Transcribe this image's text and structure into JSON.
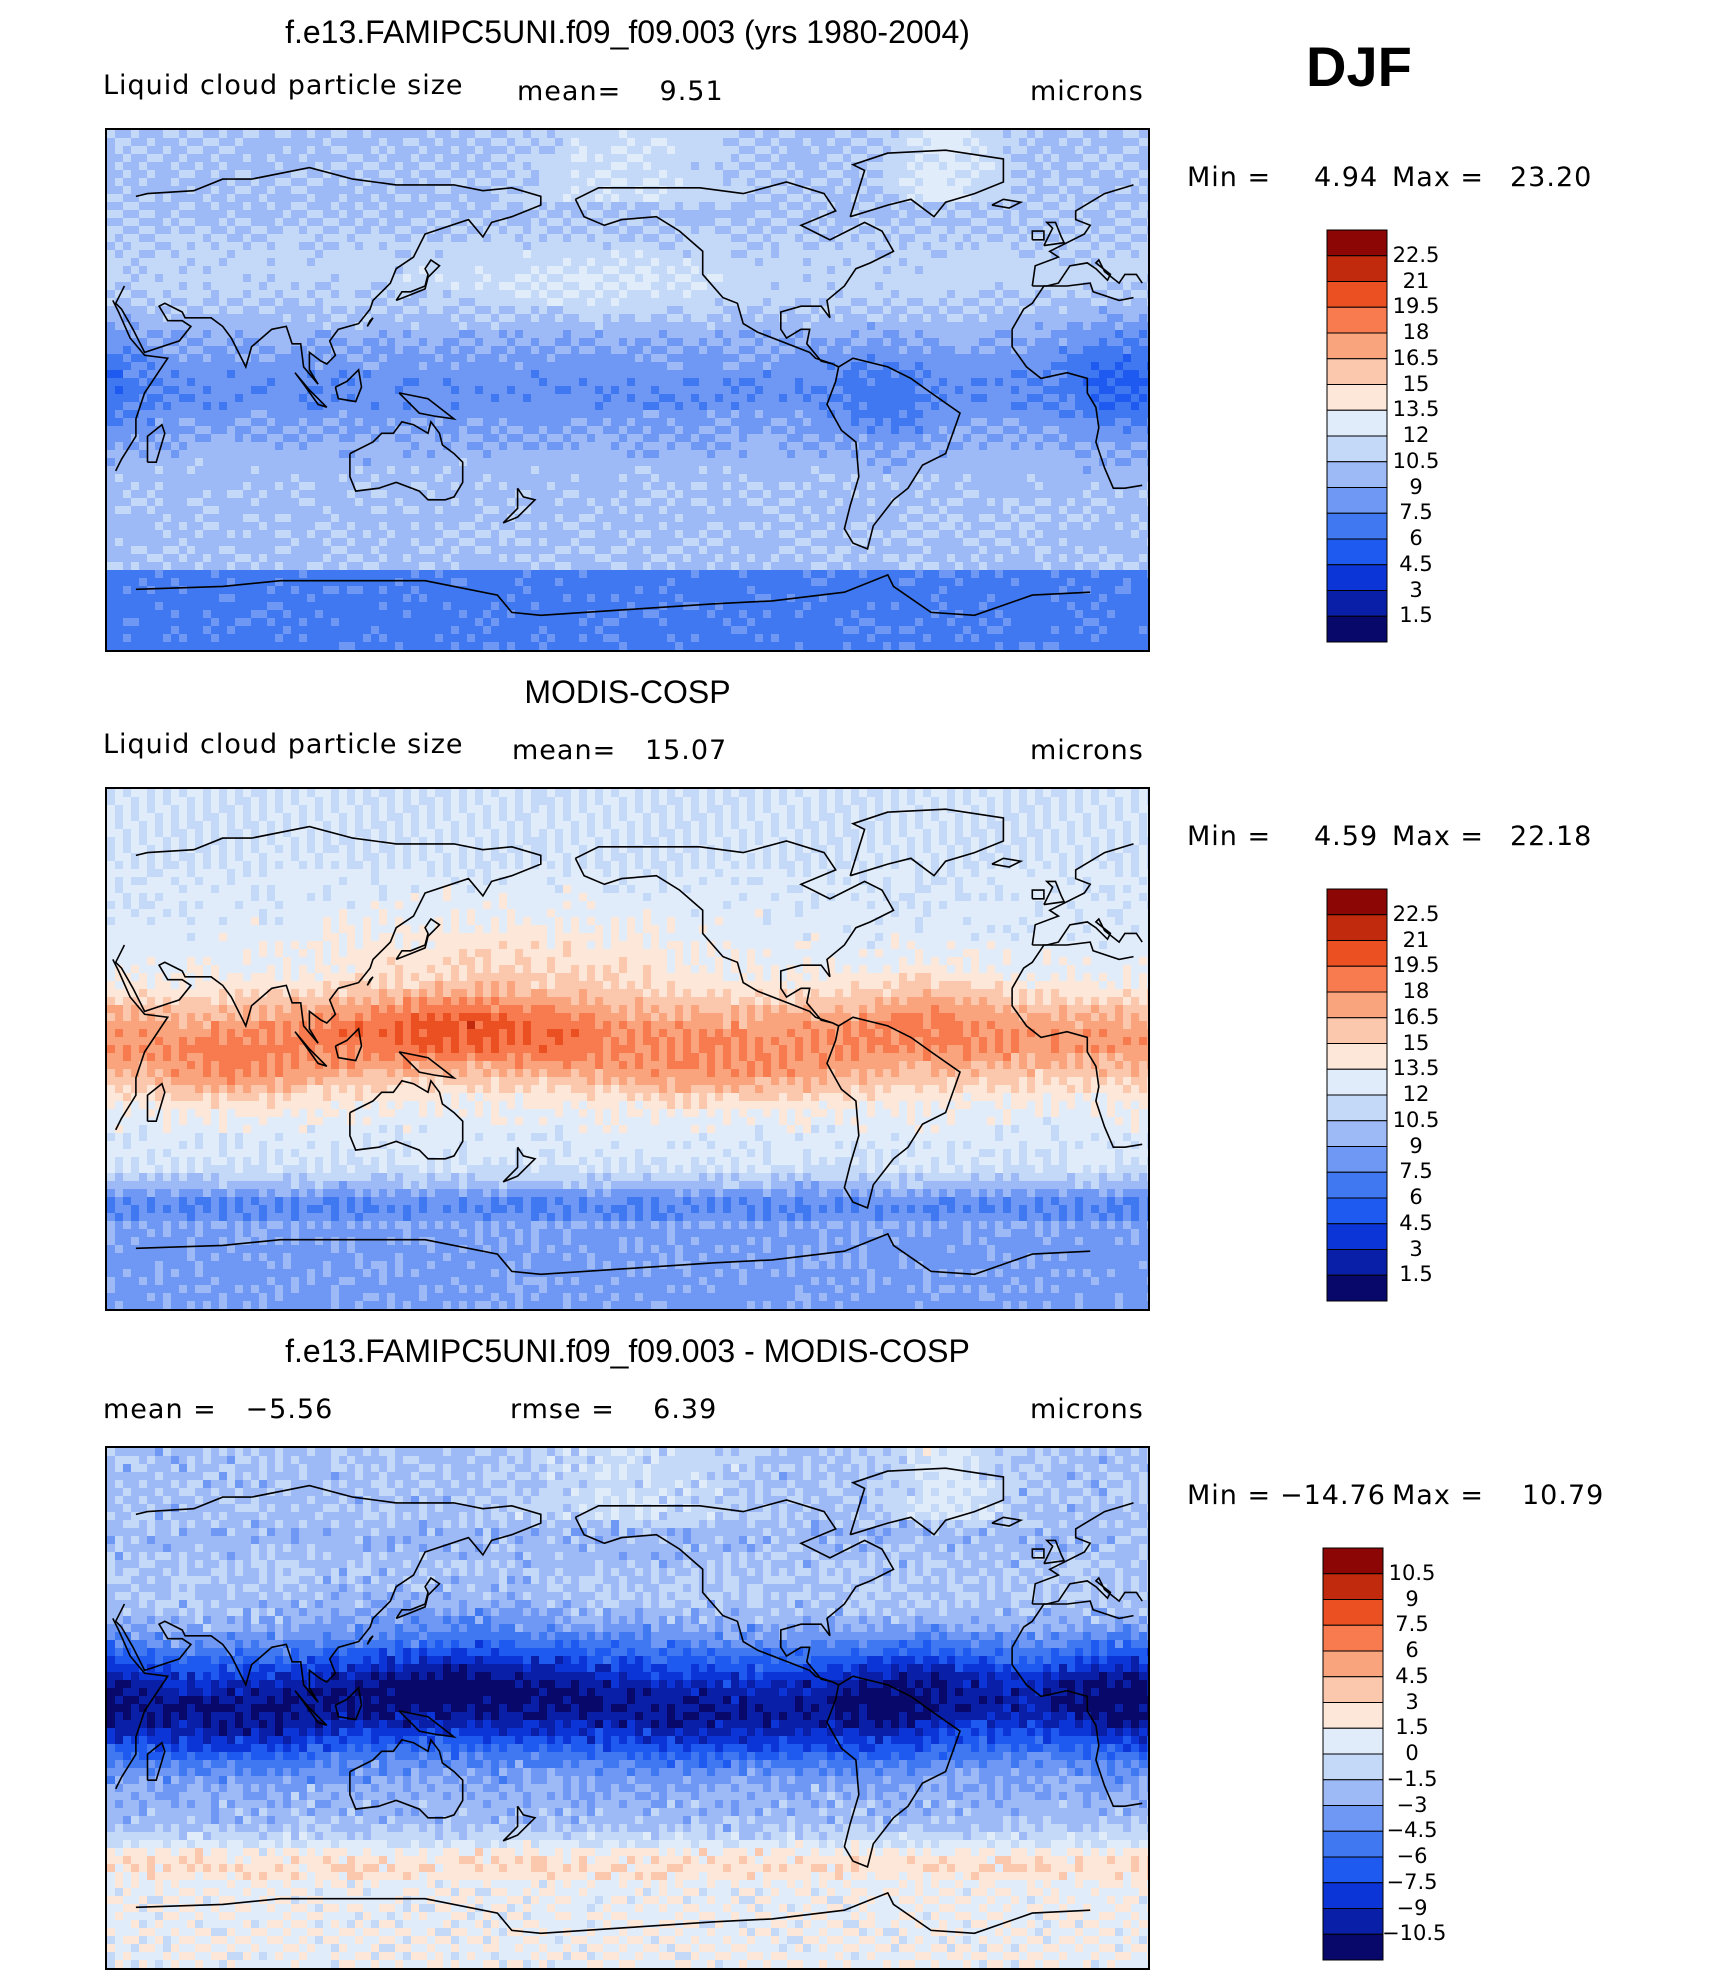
{
  "season": "DJF",
  "panels": [
    {
      "title": "f.e13.FAMIPC5UNI.f09_f09.003 (yrs 1980-2004)",
      "left_text": "Liquid cloud particle size",
      "mid_text": "mean=    9.51",
      "right_text": "microns",
      "min_label": "Min =",
      "min_value": "4.94",
      "max_label": "Max =",
      "max_value": "23.20",
      "field": "model",
      "colorbar": [
        "22.5",
        "21",
        "19.5",
        "18",
        "16.5",
        "15",
        "13.5",
        "12",
        "10.5",
        "9",
        "7.5",
        "6",
        "4.5",
        "3",
        "1.5"
      ]
    },
    {
      "title": "MODIS-COSP",
      "left_text": "Liquid cloud particle size",
      "mid_text": "mean=   15.07",
      "right_text": "microns",
      "min_label": "Min =",
      "min_value": "4.59",
      "max_label": "Max =",
      "max_value": "22.18",
      "field": "obs",
      "colorbar": [
        "22.5",
        "21",
        "19.5",
        "18",
        "16.5",
        "15",
        "13.5",
        "12",
        "10.5",
        "9",
        "7.5",
        "6",
        "4.5",
        "3",
        "1.5"
      ]
    },
    {
      "title": "f.e13.FAMIPC5UNI.f09_f09.003 - MODIS-COSP",
      "left_text": "mean =   −5.56",
      "mid_text": "rmse =    6.39",
      "right_text": "microns",
      "min_label": "Min =",
      "min_value": "−14.76",
      "max_label": "Max =",
      "max_value": "10.79",
      "field": "diff",
      "colorbar": [
        "10.5",
        "9",
        "7.5",
        "6",
        "4.5",
        "3",
        "1.5",
        "0",
        "−1.5",
        "−3",
        "−4.5",
        "−6",
        "−7.5",
        "−9",
        "−10.5"
      ]
    }
  ],
  "colors": {
    "palette16": [
      "#08086b",
      "#0a1fa8",
      "#0b35d6",
      "#1f5af0",
      "#3f78f0",
      "#6f98f5",
      "#9dbaf7",
      "#c4d8f8",
      "#e1ecfb",
      "#fde7d9",
      "#fcc8ad",
      "#f9a47c",
      "#f77b4f",
      "#ea5021",
      "#c12a0d",
      "#8c0606"
    ]
  }
}
